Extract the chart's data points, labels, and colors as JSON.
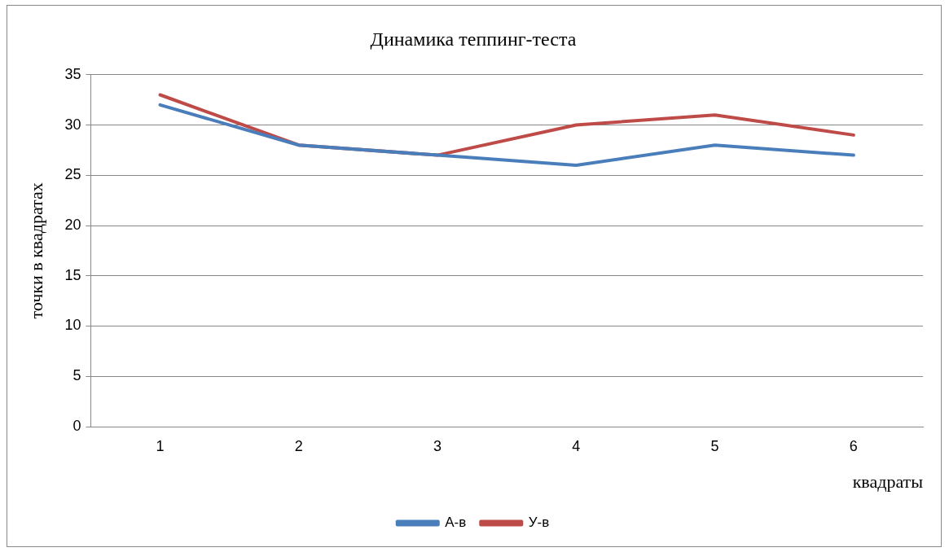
{
  "chart_data": {
    "type": "line",
    "title": "Динамика теппинг-теста",
    "xlabel": "квадраты",
    "ylabel": "точки в квадратах",
    "categories": [
      "1",
      "2",
      "3",
      "4",
      "5",
      "6"
    ],
    "series": [
      {
        "name": "А-в",
        "color": "#4a7ebb",
        "values": [
          32,
          28,
          27,
          26,
          28,
          27
        ]
      },
      {
        "name": "У-в",
        "color": "#be4b48",
        "values": [
          33,
          28,
          27,
          30,
          31,
          29
        ]
      }
    ],
    "ylim": [
      0,
      35
    ],
    "yticks": [
      0,
      5,
      10,
      15,
      20,
      25,
      30,
      35
    ],
    "grid": "y",
    "legend": "bottom",
    "marker": "none",
    "line_style": "solid"
  }
}
